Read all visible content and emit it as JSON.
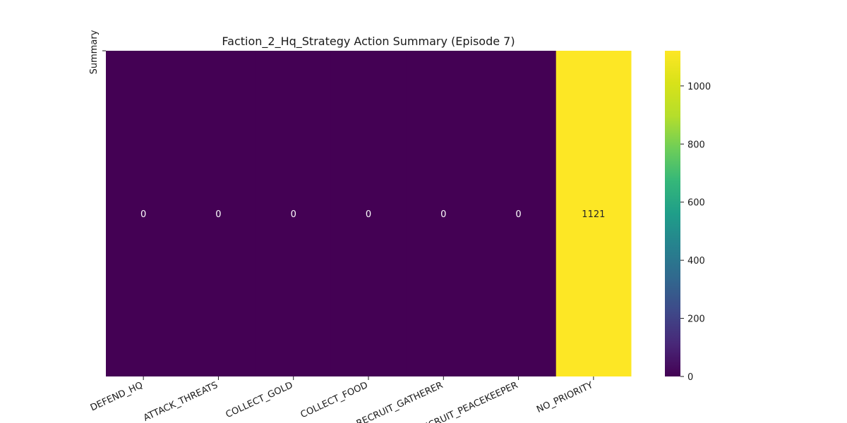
{
  "chart_data": {
    "type": "heatmap",
    "title": "Faction_2_Hq_Strategy Action Summary (Episode 7)",
    "xlabel": "",
    "ylabel": "Summary",
    "categories": [
      "DEFEND_HQ",
      "ATTACK_THREATS",
      "COLLECT_GOLD",
      "COLLECT_FOOD",
      "RECRUIT_GATHERER",
      "RECRUIT_PEACEKEEPER",
      "NO_PRIORITY"
    ],
    "rows": [
      "Summary"
    ],
    "values": [
      [
        0,
        0,
        0,
        0,
        0,
        0,
        1121
      ]
    ],
    "colormap": "viridis",
    "vmin": 0,
    "vmax": 1121,
    "colorbar_ticks": [
      0,
      200,
      400,
      600,
      800,
      1000
    ],
    "annotations": true,
    "grid": false
  }
}
